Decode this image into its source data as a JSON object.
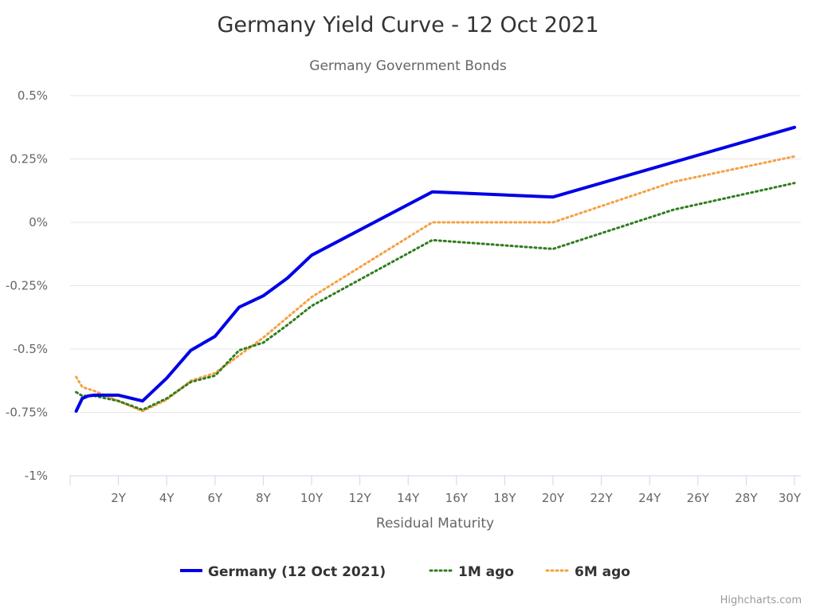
{
  "chart_data": {
    "type": "line",
    "title": "Germany Yield Curve - 12 Oct 2021",
    "subtitle": "Germany Government Bonds",
    "xlabel": "Residual Maturity",
    "ylabel": "",
    "xlim": [
      0,
      30
    ],
    "ylim": [
      -1,
      0.5
    ],
    "x_ticks": [
      {
        "value": 2,
        "label": "2Y"
      },
      {
        "value": 4,
        "label": "4Y"
      },
      {
        "value": 6,
        "label": "6Y"
      },
      {
        "value": 8,
        "label": "8Y"
      },
      {
        "value": 10,
        "label": "10Y"
      },
      {
        "value": 12,
        "label": "12Y"
      },
      {
        "value": 14,
        "label": "14Y"
      },
      {
        "value": 16,
        "label": "16Y"
      },
      {
        "value": 18,
        "label": "18Y"
      },
      {
        "value": 20,
        "label": "20Y"
      },
      {
        "value": 22,
        "label": "22Y"
      },
      {
        "value": 24,
        "label": "24Y"
      },
      {
        "value": 26,
        "label": "26Y"
      },
      {
        "value": 28,
        "label": "28Y"
      },
      {
        "value": 30,
        "label": "30Y"
      }
    ],
    "y_ticks": [
      {
        "value": 0.5,
        "label": "0.5%"
      },
      {
        "value": 0.25,
        "label": "0.25%"
      },
      {
        "value": 0,
        "label": "0%"
      },
      {
        "value": -0.25,
        "label": "-0.25%"
      },
      {
        "value": -0.5,
        "label": "-0.5%"
      },
      {
        "value": -0.75,
        "label": "-0.75%"
      },
      {
        "value": -1,
        "label": "-1%"
      }
    ],
    "grid": true,
    "legend_position": "bottom-center",
    "series": [
      {
        "name": "Germany (12 Oct 2021)",
        "color": "#0000e6",
        "style": "solid",
        "points": [
          [
            0.25,
            -0.745
          ],
          [
            0.5,
            -0.695
          ],
          [
            0.75,
            -0.685
          ],
          [
            1,
            -0.682
          ],
          [
            2,
            -0.682
          ],
          [
            3,
            -0.705
          ],
          [
            4,
            -0.615
          ],
          [
            5,
            -0.505
          ],
          [
            6,
            -0.45
          ],
          [
            7,
            -0.335
          ],
          [
            8,
            -0.29
          ],
          [
            9,
            -0.22
          ],
          [
            10,
            -0.13
          ],
          [
            15,
            0.12
          ],
          [
            20,
            0.1
          ],
          [
            30,
            0.375
          ]
        ]
      },
      {
        "name": "1M ago",
        "color": "#2e7d1e",
        "style": "dotted",
        "points": [
          [
            0.25,
            -0.67
          ],
          [
            0.5,
            -0.685
          ],
          [
            0.75,
            -0.685
          ],
          [
            1,
            -0.685
          ],
          [
            2,
            -0.705
          ],
          [
            3,
            -0.74
          ],
          [
            4,
            -0.695
          ],
          [
            5,
            -0.63
          ],
          [
            6,
            -0.605
          ],
          [
            7,
            -0.505
          ],
          [
            8,
            -0.475
          ],
          [
            9,
            -0.405
          ],
          [
            10,
            -0.33
          ],
          [
            15,
            -0.07
          ],
          [
            20,
            -0.105
          ],
          [
            25,
            0.05
          ],
          [
            30,
            0.155
          ]
        ]
      },
      {
        "name": "6M ago",
        "color": "#f5a142",
        "style": "dotted",
        "points": [
          [
            0.25,
            -0.61
          ],
          [
            0.5,
            -0.65
          ],
          [
            1,
            -0.665
          ],
          [
            2,
            -0.705
          ],
          [
            3,
            -0.745
          ],
          [
            4,
            -0.7
          ],
          [
            5,
            -0.625
          ],
          [
            6,
            -0.595
          ],
          [
            7,
            -0.525
          ],
          [
            8,
            -0.455
          ],
          [
            9,
            -0.375
          ],
          [
            10,
            -0.295
          ],
          [
            15,
            0.0
          ],
          [
            20,
            0.0
          ],
          [
            25,
            0.16
          ],
          [
            30,
            0.26
          ]
        ]
      }
    ]
  },
  "credits": "Highcharts.com"
}
